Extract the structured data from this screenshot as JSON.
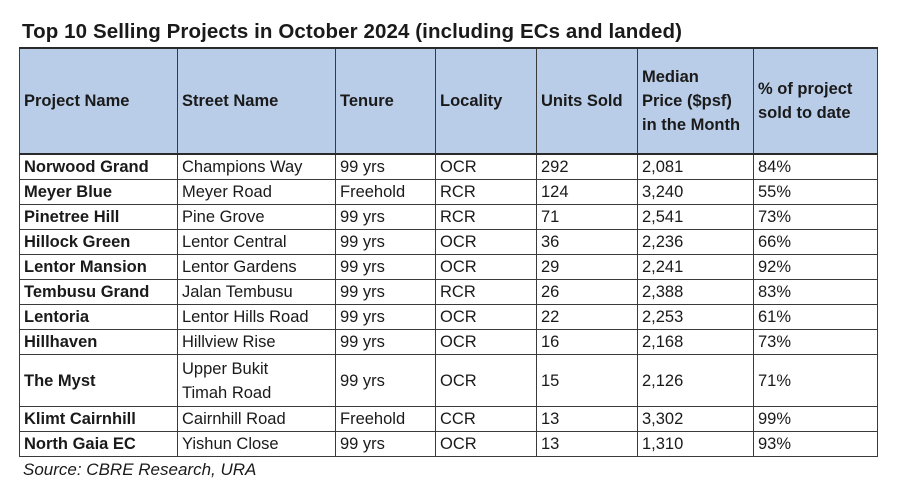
{
  "title": "Top 10 Selling Projects in October 2024 (including ECs and landed)",
  "columns": {
    "project": "Project Name",
    "street": "Street Name",
    "tenure": "Tenure",
    "locality": "Locality",
    "units": "Units Sold",
    "median_l1": "Median",
    "median_l2": "Price ($psf)",
    "median_l3": "in the Month",
    "pct_l1": "% of project",
    "pct_l2": "sold to date"
  },
  "rows": [
    {
      "project": "Norwood Grand",
      "street": "Champions Way",
      "tenure": "99 yrs",
      "locality": "OCR",
      "units": "292",
      "price": "2,081",
      "pct": "84%"
    },
    {
      "project": "Meyer Blue",
      "street": "Meyer Road",
      "tenure": "Freehold",
      "locality": "RCR",
      "units": "124",
      "price": "3,240",
      "pct": "55%"
    },
    {
      "project": "Pinetree Hill",
      "street": "Pine Grove",
      "tenure": "99 yrs",
      "locality": "RCR",
      "units": "71",
      "price": "2,541",
      "pct": "73%"
    },
    {
      "project": "Hillock Green",
      "street": "Lentor Central",
      "tenure": "99 yrs",
      "locality": "OCR",
      "units": "36",
      "price": "2,236",
      "pct": "66%"
    },
    {
      "project": "Lentor Mansion",
      "street": "Lentor Gardens",
      "tenure": "99 yrs",
      "locality": "OCR",
      "units": "29",
      "price": "2,241",
      "pct": "92%"
    },
    {
      "project": "Tembusu Grand",
      "street": "Jalan Tembusu",
      "tenure": "99 yrs",
      "locality": "RCR",
      "units": "26",
      "price": "2,388",
      "pct": "83%"
    },
    {
      "project": "Lentoria",
      "street": "Lentor Hills Road",
      "tenure": "99 yrs",
      "locality": "OCR",
      "units": "22",
      "price": "2,253",
      "pct": "61%"
    },
    {
      "project": "Hillhaven",
      "street": "Hillview Rise",
      "tenure": "99 yrs",
      "locality": "OCR",
      "units": "16",
      "price": "2,168",
      "pct": "73%"
    },
    {
      "project": "The Myst",
      "street_l1": "Upper Bukit",
      "street_l2": "Timah Road",
      "tenure": "99 yrs",
      "locality": "OCR",
      "units": "15",
      "price": "2,126",
      "pct": "71%"
    },
    {
      "project": "Klimt Cairnhill",
      "street": "Cairnhill Road",
      "tenure": "Freehold",
      "locality": "CCR",
      "units": "13",
      "price": "3,302",
      "pct": "99%"
    },
    {
      "project": "North Gaia EC",
      "street": "Yishun Close",
      "tenure": "99 yrs",
      "locality": "OCR",
      "units": "13",
      "price": "1,310",
      "pct": "93%"
    }
  ],
  "source": "Source: CBRE Research, URA"
}
